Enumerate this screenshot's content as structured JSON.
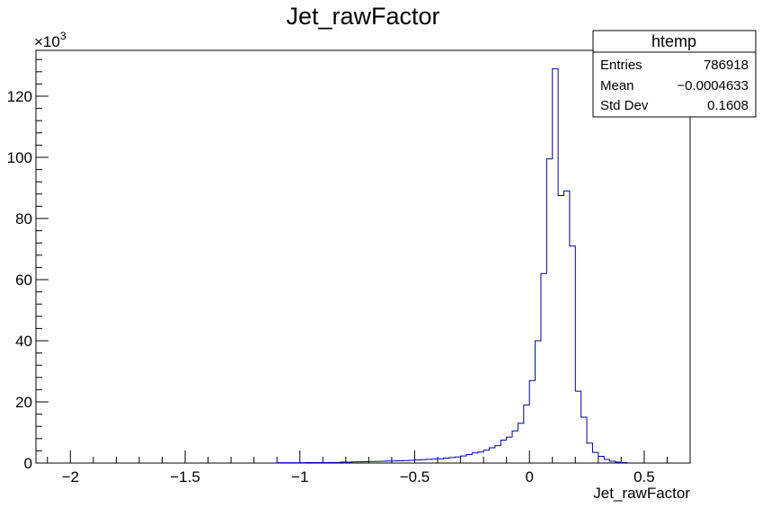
{
  "chart_data": {
    "type": "bar",
    "title": "Jet_rawFactor",
    "xlabel": "Jet_rawFactor",
    "ylabel": "",
    "y_multiplier_label": "×10",
    "y_multiplier_exponent": "3",
    "xlim": [
      -2.15,
      0.7
    ],
    "ylim": [
      0,
      135
    ],
    "x_ticks": [
      -2,
      -1.5,
      -1,
      -0.5,
      0,
      0.5
    ],
    "x_tick_labels": [
      "−2",
      "−1.5",
      "−1",
      "−0.5",
      "0",
      "0.5"
    ],
    "y_ticks": [
      0,
      20,
      40,
      60,
      80,
      100,
      120
    ],
    "y_tick_labels": [
      "0",
      "20",
      "40",
      "60",
      "80",
      "100",
      "120"
    ],
    "bin_start": -1.1,
    "bin_width": 0.025,
    "values": [
      0.1,
      0.1,
      0.1,
      0.1,
      0.1,
      0.15,
      0.15,
      0.15,
      0.15,
      0.2,
      0.2,
      0.3,
      0.3,
      0.35,
      0.4,
      0.45,
      0.5,
      0.55,
      0.6,
      0.65,
      0.7,
      0.75,
      0.8,
      0.9,
      1.0,
      1.1,
      1.2,
      1.3,
      1.4,
      1.6,
      1.8,
      2.0,
      2.3,
      2.8,
      3.3,
      3.6,
      4.2,
      5.0,
      5.7,
      7.5,
      8.5,
      10.5,
      13.0,
      19.0,
      27.0,
      40.0,
      62.0,
      99.5,
      129.0,
      87.5,
      89.0,
      71.0,
      23.5,
      15.0,
      6.5,
      3.5,
      2.2,
      1.2,
      0.6,
      0.3,
      0.15
    ],
    "stats": {
      "name": "htemp",
      "entries_label": "Entries",
      "entries": "786918",
      "mean_label": "Mean",
      "mean": "−0.0004633",
      "stddev_label": "Std Dev",
      "stddev": "0.1608"
    },
    "legend_position": "top-right",
    "line_color": "#000099",
    "grid": false
  }
}
